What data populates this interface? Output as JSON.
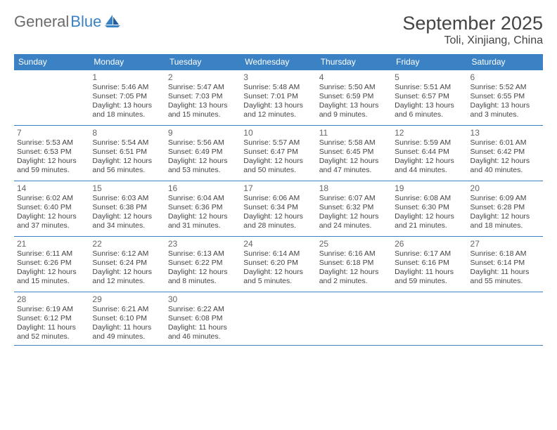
{
  "logo": {
    "text1": "General",
    "text2": "Blue"
  },
  "header": {
    "month_title": "September 2025",
    "location": "Toli, Xinjiang, China"
  },
  "colors": {
    "header_bg": "#3b82c4",
    "header_text": "#ffffff",
    "page_bg": "#ffffff",
    "body_text": "#444444",
    "divider": "#3b82c4",
    "daynum_text": "#666666",
    "logo_gray": "#6b6b6b",
    "logo_blue": "#3b82c4"
  },
  "typography": {
    "month_title_fontsize": 27,
    "location_fontsize": 16,
    "dow_fontsize": 12,
    "daynum_fontsize": 12,
    "info_fontsize": 10.5,
    "font_family": "Arial"
  },
  "days_of_week": [
    "Sunday",
    "Monday",
    "Tuesday",
    "Wednesday",
    "Thursday",
    "Friday",
    "Saturday"
  ],
  "weeks": [
    [
      null,
      {
        "n": "1",
        "sr": "Sunrise: 5:46 AM",
        "ss": "Sunset: 7:05 PM",
        "d1": "Daylight: 13 hours",
        "d2": "and 18 minutes."
      },
      {
        "n": "2",
        "sr": "Sunrise: 5:47 AM",
        "ss": "Sunset: 7:03 PM",
        "d1": "Daylight: 13 hours",
        "d2": "and 15 minutes."
      },
      {
        "n": "3",
        "sr": "Sunrise: 5:48 AM",
        "ss": "Sunset: 7:01 PM",
        "d1": "Daylight: 13 hours",
        "d2": "and 12 minutes."
      },
      {
        "n": "4",
        "sr": "Sunrise: 5:50 AM",
        "ss": "Sunset: 6:59 PM",
        "d1": "Daylight: 13 hours",
        "d2": "and 9 minutes."
      },
      {
        "n": "5",
        "sr": "Sunrise: 5:51 AM",
        "ss": "Sunset: 6:57 PM",
        "d1": "Daylight: 13 hours",
        "d2": "and 6 minutes."
      },
      {
        "n": "6",
        "sr": "Sunrise: 5:52 AM",
        "ss": "Sunset: 6:55 PM",
        "d1": "Daylight: 13 hours",
        "d2": "and 3 minutes."
      }
    ],
    [
      {
        "n": "7",
        "sr": "Sunrise: 5:53 AM",
        "ss": "Sunset: 6:53 PM",
        "d1": "Daylight: 12 hours",
        "d2": "and 59 minutes."
      },
      {
        "n": "8",
        "sr": "Sunrise: 5:54 AM",
        "ss": "Sunset: 6:51 PM",
        "d1": "Daylight: 12 hours",
        "d2": "and 56 minutes."
      },
      {
        "n": "9",
        "sr": "Sunrise: 5:56 AM",
        "ss": "Sunset: 6:49 PM",
        "d1": "Daylight: 12 hours",
        "d2": "and 53 minutes."
      },
      {
        "n": "10",
        "sr": "Sunrise: 5:57 AM",
        "ss": "Sunset: 6:47 PM",
        "d1": "Daylight: 12 hours",
        "d2": "and 50 minutes."
      },
      {
        "n": "11",
        "sr": "Sunrise: 5:58 AM",
        "ss": "Sunset: 6:45 PM",
        "d1": "Daylight: 12 hours",
        "d2": "and 47 minutes."
      },
      {
        "n": "12",
        "sr": "Sunrise: 5:59 AM",
        "ss": "Sunset: 6:44 PM",
        "d1": "Daylight: 12 hours",
        "d2": "and 44 minutes."
      },
      {
        "n": "13",
        "sr": "Sunrise: 6:01 AM",
        "ss": "Sunset: 6:42 PM",
        "d1": "Daylight: 12 hours",
        "d2": "and 40 minutes."
      }
    ],
    [
      {
        "n": "14",
        "sr": "Sunrise: 6:02 AM",
        "ss": "Sunset: 6:40 PM",
        "d1": "Daylight: 12 hours",
        "d2": "and 37 minutes."
      },
      {
        "n": "15",
        "sr": "Sunrise: 6:03 AM",
        "ss": "Sunset: 6:38 PM",
        "d1": "Daylight: 12 hours",
        "d2": "and 34 minutes."
      },
      {
        "n": "16",
        "sr": "Sunrise: 6:04 AM",
        "ss": "Sunset: 6:36 PM",
        "d1": "Daylight: 12 hours",
        "d2": "and 31 minutes."
      },
      {
        "n": "17",
        "sr": "Sunrise: 6:06 AM",
        "ss": "Sunset: 6:34 PM",
        "d1": "Daylight: 12 hours",
        "d2": "and 28 minutes."
      },
      {
        "n": "18",
        "sr": "Sunrise: 6:07 AM",
        "ss": "Sunset: 6:32 PM",
        "d1": "Daylight: 12 hours",
        "d2": "and 24 minutes."
      },
      {
        "n": "19",
        "sr": "Sunrise: 6:08 AM",
        "ss": "Sunset: 6:30 PM",
        "d1": "Daylight: 12 hours",
        "d2": "and 21 minutes."
      },
      {
        "n": "20",
        "sr": "Sunrise: 6:09 AM",
        "ss": "Sunset: 6:28 PM",
        "d1": "Daylight: 12 hours",
        "d2": "and 18 minutes."
      }
    ],
    [
      {
        "n": "21",
        "sr": "Sunrise: 6:11 AM",
        "ss": "Sunset: 6:26 PM",
        "d1": "Daylight: 12 hours",
        "d2": "and 15 minutes."
      },
      {
        "n": "22",
        "sr": "Sunrise: 6:12 AM",
        "ss": "Sunset: 6:24 PM",
        "d1": "Daylight: 12 hours",
        "d2": "and 12 minutes."
      },
      {
        "n": "23",
        "sr": "Sunrise: 6:13 AM",
        "ss": "Sunset: 6:22 PM",
        "d1": "Daylight: 12 hours",
        "d2": "and 8 minutes."
      },
      {
        "n": "24",
        "sr": "Sunrise: 6:14 AM",
        "ss": "Sunset: 6:20 PM",
        "d1": "Daylight: 12 hours",
        "d2": "and 5 minutes."
      },
      {
        "n": "25",
        "sr": "Sunrise: 6:16 AM",
        "ss": "Sunset: 6:18 PM",
        "d1": "Daylight: 12 hours",
        "d2": "and 2 minutes."
      },
      {
        "n": "26",
        "sr": "Sunrise: 6:17 AM",
        "ss": "Sunset: 6:16 PM",
        "d1": "Daylight: 11 hours",
        "d2": "and 59 minutes."
      },
      {
        "n": "27",
        "sr": "Sunrise: 6:18 AM",
        "ss": "Sunset: 6:14 PM",
        "d1": "Daylight: 11 hours",
        "d2": "and 55 minutes."
      }
    ],
    [
      {
        "n": "28",
        "sr": "Sunrise: 6:19 AM",
        "ss": "Sunset: 6:12 PM",
        "d1": "Daylight: 11 hours",
        "d2": "and 52 minutes."
      },
      {
        "n": "29",
        "sr": "Sunrise: 6:21 AM",
        "ss": "Sunset: 6:10 PM",
        "d1": "Daylight: 11 hours",
        "d2": "and 49 minutes."
      },
      {
        "n": "30",
        "sr": "Sunrise: 6:22 AM",
        "ss": "Sunset: 6:08 PM",
        "d1": "Daylight: 11 hours",
        "d2": "and 46 minutes."
      },
      null,
      null,
      null,
      null
    ]
  ]
}
